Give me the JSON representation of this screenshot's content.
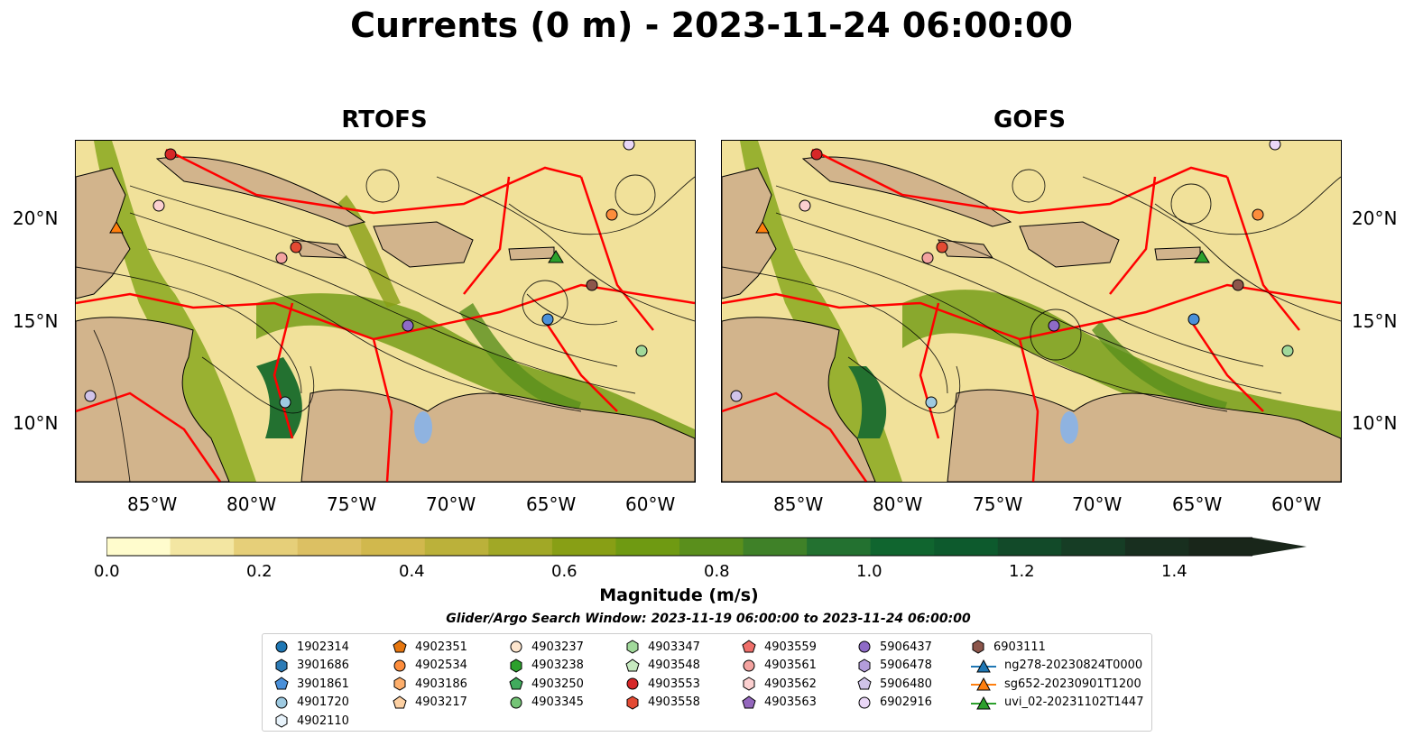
{
  "title": "Currents (0 m) - 2023-11-24 06:00:00",
  "panels": [
    {
      "title": "RTOFS"
    },
    {
      "title": "GOFS"
    }
  ],
  "map": {
    "lat_labels": [
      "20°N",
      "15°N",
      "10°N"
    ],
    "lon_labels": [
      "85°W",
      "80°W",
      "75°W",
      "70°W",
      "65°W",
      "60°W"
    ],
    "lon_range": [
      -89,
      -58
    ],
    "lat_range": [
      7,
      24
    ]
  },
  "colorbar": {
    "label": "Magnitude (m/s)",
    "ticks": [
      "0.0",
      "0.2",
      "0.4",
      "0.6",
      "0.8",
      "1.0",
      "1.2",
      "1.4"
    ],
    "range": [
      0,
      1.5
    ],
    "extend": "max",
    "colors": [
      "#fffccd",
      "#f3e6a2",
      "#e6cf79",
      "#dcc063",
      "#d1b84d",
      "#bbb13a",
      "#a1a826",
      "#889f15",
      "#6f9a12",
      "#5a8f1c",
      "#3f8128",
      "#237130",
      "#10652f",
      "#0d5a2d",
      "#124a29",
      "#163d25",
      "#182f1f",
      "#19261a"
    ]
  },
  "search_window": "Glider/Argo Search Window: 2023-11-19 06:00:00 to 2023-11-24 06:00:00",
  "legend": {
    "columns": [
      [
        {
          "label": "1902314",
          "marker": "circle",
          "color": "#1f77b4"
        },
        {
          "label": "3901686",
          "marker": "hexagon",
          "color": "#2c7bb6"
        },
        {
          "label": "3901861",
          "marker": "pentagon",
          "color": "#4a90d9"
        },
        {
          "label": "4901720",
          "marker": "circle",
          "color": "#9ecae1"
        },
        {
          "label": "4902110",
          "marker": "hexagon",
          "color": "#e8f3fb"
        }
      ],
      [
        {
          "label": "4902351",
          "marker": "pentagon",
          "color": "#e6760f"
        },
        {
          "label": "4902534",
          "marker": "circle",
          "color": "#fd8d3c"
        },
        {
          "label": "4903186",
          "marker": "hexagon",
          "color": "#fdae6b"
        },
        {
          "label": "4903217",
          "marker": "pentagon",
          "color": "#fdd0a2"
        }
      ],
      [
        {
          "label": "4903237",
          "marker": "circle",
          "color": "#fee6ce"
        },
        {
          "label": "4903238",
          "marker": "hexagon",
          "color": "#2ca02c"
        },
        {
          "label": "4903250",
          "marker": "pentagon",
          "color": "#41ab5d"
        },
        {
          "label": "4903345",
          "marker": "circle",
          "color": "#74c476"
        }
      ],
      [
        {
          "label": "4903347",
          "marker": "hexagon",
          "color": "#a1d99b"
        },
        {
          "label": "4903548",
          "marker": "pentagon",
          "color": "#c7e9c0"
        },
        {
          "label": "4903553",
          "marker": "circle",
          "color": "#d62728"
        },
        {
          "label": "4903558",
          "marker": "hexagon",
          "color": "#e34a33"
        }
      ],
      [
        {
          "label": "4903559",
          "marker": "pentagon",
          "color": "#ef6f6a"
        },
        {
          "label": "4903561",
          "marker": "circle",
          "color": "#f4a3a0"
        },
        {
          "label": "4903562",
          "marker": "hexagon",
          "color": "#fcd0d0"
        },
        {
          "label": "4903563",
          "marker": "pentagon",
          "color": "#9467bd"
        }
      ],
      [
        {
          "label": "5906437",
          "marker": "circle",
          "color": "#8e6bc6"
        },
        {
          "label": "5906478",
          "marker": "hexagon",
          "color": "#b39ddb"
        },
        {
          "label": "5906480",
          "marker": "pentagon",
          "color": "#d1c4e9"
        },
        {
          "label": "6902916",
          "marker": "circle",
          "color": "#ead7f7"
        }
      ],
      [
        {
          "label": "6903111",
          "marker": "hexagon",
          "color": "#8c564b"
        },
        {
          "label": "ng278-20230824T0000",
          "marker": "triangle-line",
          "color": "#1f77b4"
        },
        {
          "label": "sg652-20230901T1200",
          "marker": "triangle-line",
          "color": "#ff7f0e"
        },
        {
          "label": "uvi_02-20231102T1447",
          "marker": "triangle-line",
          "color": "#2ca02c"
        }
      ]
    ]
  }
}
